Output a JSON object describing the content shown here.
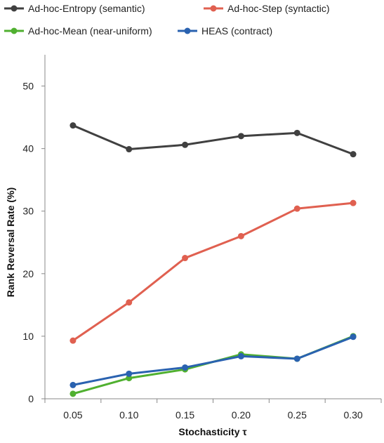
{
  "chart_data": {
    "type": "line",
    "title": "",
    "xlabel": "Stochasticity τ",
    "ylabel": "Rank Reversal Rate (%)",
    "x_tick_labels": [
      "0.05",
      "0.10",
      "0.15",
      "0.20",
      "0.25",
      "0.30"
    ],
    "x": [
      0.05,
      0.1,
      0.15,
      0.2,
      0.25,
      0.3
    ],
    "y_ticks": [
      0,
      10,
      20,
      30,
      40,
      50
    ],
    "y_tick_labels": [
      "0",
      "10",
      "20",
      "30",
      "40",
      "50"
    ],
    "ylim": [
      0,
      55
    ],
    "grid": false,
    "legend_position": "top",
    "series": [
      {
        "name": "Ad-hoc-Entropy (semantic)",
        "color": "#404040",
        "values": [
          43.7,
          39.9,
          40.6,
          42.0,
          42.5,
          39.1
        ]
      },
      {
        "name": "Ad-hoc-Step (syntactic)",
        "color": "#e06050",
        "values": [
          9.3,
          15.4,
          22.5,
          26.0,
          30.4,
          31.3
        ]
      },
      {
        "name": "Ad-hoc-Mean (near-uniform)",
        "color": "#50b030",
        "values": [
          0.8,
          3.3,
          4.7,
          7.1,
          6.4,
          10.0
        ]
      },
      {
        "name": "HEAS (contract)",
        "color": "#2a62b0",
        "values": [
          2.2,
          4.0,
          5.0,
          6.8,
          6.4,
          9.9
        ]
      }
    ]
  }
}
